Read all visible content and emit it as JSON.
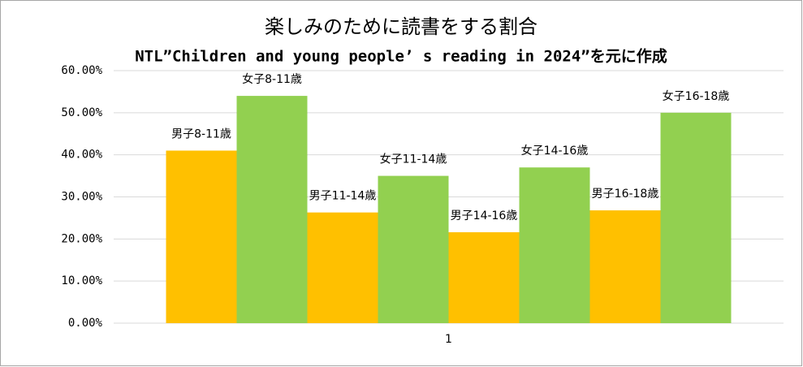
{
  "chart_data": {
    "type": "bar",
    "title": "楽しみのために読書をする割合",
    "subtitle": "NTL”Children and young people’ s reading in 2024”を元に作成",
    "categories": [
      "1"
    ],
    "series": [
      {
        "name": "男子8-11歳",
        "color": "#ffc000",
        "values": [
          41
        ]
      },
      {
        "name": "女子8-11歳",
        "color": "#92d050",
        "values": [
          54
        ]
      },
      {
        "name": "男子11-14歳",
        "color": "#ffc000",
        "values": [
          26.3
        ]
      },
      {
        "name": "女子11-14歳",
        "color": "#92d050",
        "values": [
          35
        ]
      },
      {
        "name": "男子14-16歳",
        "color": "#ffc000",
        "values": [
          21.6
        ]
      },
      {
        "name": "女子14-16歳",
        "color": "#92d050",
        "values": [
          37
        ]
      },
      {
        "name": "男子16-18歳",
        "color": "#ffc000",
        "values": [
          26.8
        ]
      },
      {
        "name": "女子16-18歳",
        "color": "#92d050",
        "values": [
          50
        ]
      }
    ],
    "ylim": [
      0,
      60
    ],
    "yticks": [
      {
        "value": 0,
        "label": "0.00%"
      },
      {
        "value": 10,
        "label": "10.00%"
      },
      {
        "value": 20,
        "label": "20.00%"
      },
      {
        "value": 30,
        "label": "30.00%"
      },
      {
        "value": 40,
        "label": "40.00%"
      },
      {
        "value": 50,
        "label": "50.00%"
      },
      {
        "value": 60,
        "label": "60.00%"
      }
    ],
    "grid": true
  }
}
